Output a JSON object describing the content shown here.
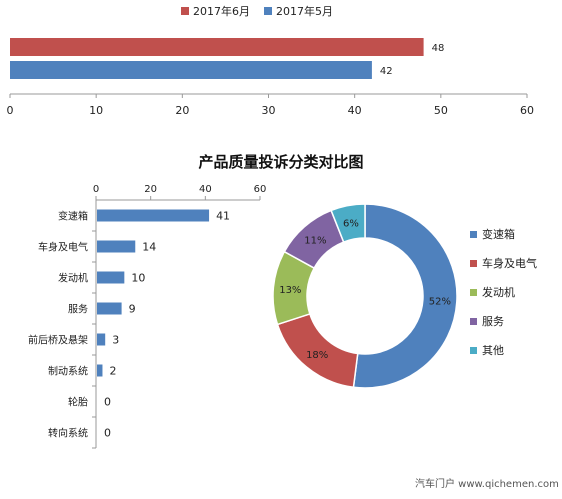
{
  "chart_data": [
    {
      "type": "bar",
      "orientation": "horizontal",
      "title": "",
      "categories": [
        ""
      ],
      "series": [
        {
          "name": "2017年6月",
          "values": [
            48
          ],
          "color": "#c0504d"
        },
        {
          "name": "2017年5月",
          "values": [
            42
          ],
          "color": "#4f81bd"
        }
      ],
      "xlim": [
        0,
        60
      ],
      "xticks": [
        0,
        10,
        20,
        30,
        40,
        50,
        60
      ],
      "legend": "top",
      "data_labels": true
    },
    {
      "type": "bar",
      "orientation": "horizontal",
      "title": "产品质量投诉分类对比图",
      "categories": [
        "变速箱",
        "车身及电气",
        "发动机",
        "服务",
        "前后桥及悬架",
        "制动系统",
        "轮胎",
        "转向系统"
      ],
      "series": [
        {
          "name": "",
          "values": [
            41,
            14,
            10,
            9,
            3,
            2,
            0,
            0
          ],
          "color": "#4f81bd"
        }
      ],
      "xlim": [
        0,
        60
      ],
      "xticks": [
        0,
        20,
        40,
        60
      ],
      "xaxis_position": "top",
      "data_labels": true
    },
    {
      "type": "pie",
      "donut": true,
      "labels": [
        "变速箱",
        "车身及电气",
        "发动机",
        "服务",
        "其他"
      ],
      "values": [
        52,
        18,
        13,
        11,
        6
      ],
      "value_labels": [
        "52%",
        "18%",
        "13%",
        "11%",
        "6%"
      ],
      "colors": [
        "#4f81bd",
        "#c0504d",
        "#9bbb59",
        "#8064a2",
        "#4bacc6"
      ],
      "legend": "right"
    }
  ],
  "watermark": "汽车门户 www.qichemen.com"
}
